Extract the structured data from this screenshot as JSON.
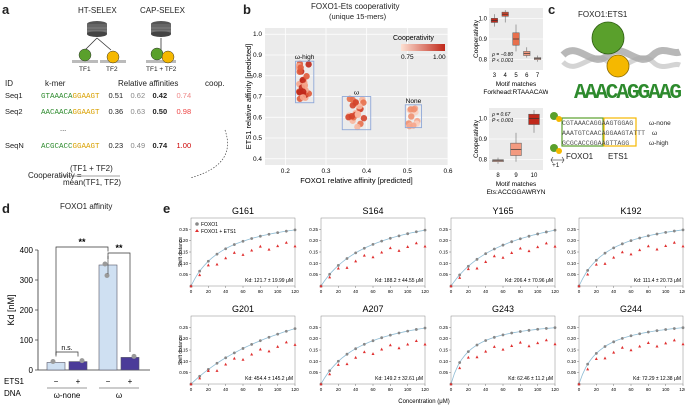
{
  "panels": {
    "a": "a",
    "b": "b",
    "c": "c",
    "d": "d",
    "e": "e"
  },
  "a": {
    "ht_selex": "HT-SELEX",
    "cap_selex": "CAP-SELEX",
    "tf1": "TF1",
    "tf2": "TF2",
    "tf12": "TF1 + TF2",
    "col_id": "ID",
    "col_kmer": "k-mer",
    "col_aff": "Relative affinities",
    "col_coop": "coop.",
    "rows": [
      {
        "id": "Seq1",
        "seq_a": "GTAAACA",
        "seq_b": "GGAAGT",
        "v1": "0.51",
        "v2": "0.62",
        "v3": "0.42",
        "v4": "0.74"
      },
      {
        "id": "Seq2",
        "seq_a": "AACAACA",
        "seq_b": "GGAAGT",
        "v1": "0.36",
        "v2": "0.63",
        "v3": "0.50",
        "v4": "0.98"
      },
      {
        "id": "SeqN",
        "seq_a": "ACGCACC",
        "seq_b": "GGAAGT",
        "v1": "0.23",
        "v2": "0.49",
        "v3": "0.74",
        "v4": "1.00"
      }
    ],
    "ellipsis": "...",
    "formula_left": "Cooperativity =",
    "formula_num": "(TF1 + TF2)",
    "formula_den": "mean(TF1, TF2)"
  },
  "b": {
    "title1": "FOXO1-Ets cooperativity",
    "title2": "(unique 15-mers)",
    "legend_title": "Cooperativity",
    "legend_lo": "0.75",
    "legend_hi": "1.00",
    "box_labels": [
      "ω-high",
      "ω",
      "None"
    ],
    "xlabel": "FOXO1 relative affinity [predicted]",
    "ylabel": "ETS1 relative affinity [predicted]",
    "xticks": [
      "0.2",
      "0.3",
      "0.4",
      "0.5",
      "0.6"
    ],
    "yticks": [
      "0.4",
      "0.5",
      "0.6",
      "0.7",
      "0.8",
      "0.9",
      "1.0"
    ],
    "box1": {
      "ylabel": "Cooperativity",
      "ticks": [
        "1.0",
        "0.9",
        "0.8"
      ],
      "xticks": [
        "3",
        "4",
        "5",
        "6",
        "7"
      ],
      "stat1": "ρ = −0.80",
      "stat2": "P < 0.001",
      "xlabel1": "Motif matches",
      "xlabel2": "Forkhead:RTAAACAW"
    },
    "box2": {
      "ylabel": "Cooperativity",
      "ticks": [
        "1.0",
        "0.9",
        "0.8"
      ],
      "xticks": [
        "8",
        "9",
        "10"
      ],
      "stat1": "ρ = 0.67",
      "stat2": "P < 0.001",
      "xlabel1": "Motif matches",
      "xlabel2": "Ets:ACCGGAWRYN"
    }
  },
  "c": {
    "title": "FOXO1:ETS1",
    "logo": "AAACAGGAAG",
    "seq_top": "CGTAAACAGGAAGTGGAG",
    "seq_mid": "AAATGTCAACAGGAAGTATTT",
    "seq_bot": "GCGCACCGGAAGTTAGG",
    "lab_none": "ω-none",
    "lab_mid": "ω",
    "lab_high": "ω-high",
    "foxo": "FOXO1",
    "ets": "ETS1",
    "shift": "+1"
  },
  "d": {
    "title": "FOXO1 affinity",
    "ylabel": "Kd [nM]",
    "yticks": [
      "0",
      "100",
      "200",
      "300",
      "400"
    ],
    "sig1": "**",
    "sig2": "**",
    "ns": "n.s.",
    "ets_label": "ETS1",
    "dna_label": "DNA",
    "signs": [
      "−",
      "+",
      "−",
      "+"
    ],
    "groups": [
      "ω-none",
      "ω"
    ],
    "chart_data": {
      "type": "bar",
      "categories": [
        "ω-none −",
        "ω-none +",
        "ω −",
        "ω +"
      ],
      "values": [
        25,
        28,
        350,
        42
      ],
      "ylim": [
        0,
        400
      ]
    }
  },
  "e": {
    "legend1": "FOXO1",
    "legend2": "FOXO1 + ETS1",
    "ylabel": "Shift distance",
    "xlabel": "Concentration (μM)",
    "xticks": [
      "0",
      "20",
      "40",
      "60",
      "80",
      "100",
      "120"
    ],
    "plots": [
      {
        "name": "G161",
        "kd": "Kd: 121.7 ± 19.99 μM"
      },
      {
        "name": "S164",
        "kd": "Kd: 188.2 ± 44.55 μM"
      },
      {
        "name": "Y165",
        "kd": "Kd: 206.4 ± 70.96 μM"
      },
      {
        "name": "K192",
        "kd": "Kd: 111.4 ± 20.73 μM"
      },
      {
        "name": "G201",
        "kd": "Kd: 454.4 ± 145.2 μM"
      },
      {
        "name": "A207",
        "kd": "Kd: 149.2 ± 32.61 μM"
      },
      {
        "name": "G243",
        "kd": "Kd: 62.46 ± 11.2 μM"
      },
      {
        "name": "G244",
        "kd": "Kd: 72.29 ± 12.38 μM"
      }
    ],
    "yticks_top": [
      "0.05",
      "0.10",
      "0.15",
      "0.20",
      "0.25"
    ]
  }
}
